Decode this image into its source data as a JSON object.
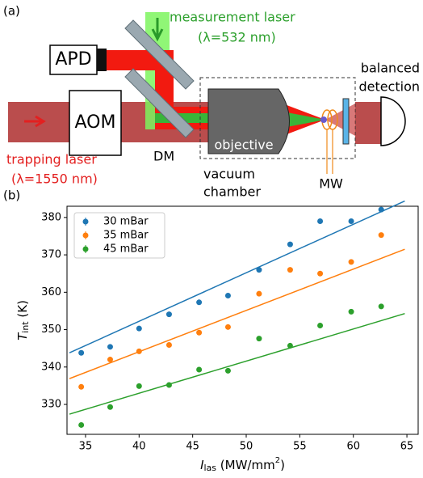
{
  "diagram": {
    "panel_label": "(a)",
    "measurement_laser": "measurement laser",
    "measurement_wavelength": "(λ=532 nm)",
    "apd": "APD",
    "aom": "AOM",
    "trapping_laser": "trapping laser",
    "trapping_wavelength": "(λ=1550 nm)",
    "dm": "DM",
    "objective": "objective",
    "vacuum": "vacuum",
    "chamber": "chamber",
    "mw": "MW",
    "balanced": "balanced",
    "detection": "detection"
  },
  "chart_data": {
    "type": "scatter",
    "panel_label": "(b)",
    "x_label": [
      "I",
      "las",
      " (MW/mm",
      "2",
      ")"
    ],
    "y_label": [
      "T",
      "int",
      " (K)"
    ],
    "x": [
      34.6,
      37.3,
      40,
      42.8,
      45.6,
      48.3,
      51.2,
      54.1,
      56.9,
      59.8,
      62.6
    ],
    "series": [
      {
        "name": "30 mBar",
        "color": "#1f77b4",
        "values": [
          343.8,
          345.4,
          350.3,
          354.1,
          357.3,
          359.1,
          366.0,
          372.8,
          379.0,
          379.0,
          382.1
        ],
        "fit_x": [
          33.5,
          64.8
        ],
        "fit_values": [
          343.8,
          384.4
        ]
      },
      {
        "name": "35 mBar",
        "color": "#ff7f0e",
        "values": [
          334.7,
          342.0,
          344.2,
          345.9,
          349.2,
          350.7,
          359.6,
          366.0,
          365.0,
          368.1,
          375.3
        ],
        "fit_x": [
          33.5,
          64.8
        ],
        "fit_values": [
          336.9,
          371.5
        ]
      },
      {
        "name": "45 mBar",
        "color": "#2ca02c",
        "values": [
          324.5,
          329.3,
          334.9,
          335.2,
          339.3,
          339.0,
          347.6,
          345.7,
          351.1,
          354.8,
          356.2
        ],
        "fit_x": [
          33.5,
          64.8
        ],
        "fit_values": [
          327.4,
          354.3
        ]
      }
    ],
    "xlim": [
      33.27,
      66.05
    ],
    "ylim": [
      322,
      383
    ],
    "xticks": [
      35,
      40,
      45,
      50,
      55,
      60,
      65
    ],
    "yticks": [
      330,
      340,
      350,
      360,
      370,
      380
    ],
    "legend": "upper left"
  }
}
